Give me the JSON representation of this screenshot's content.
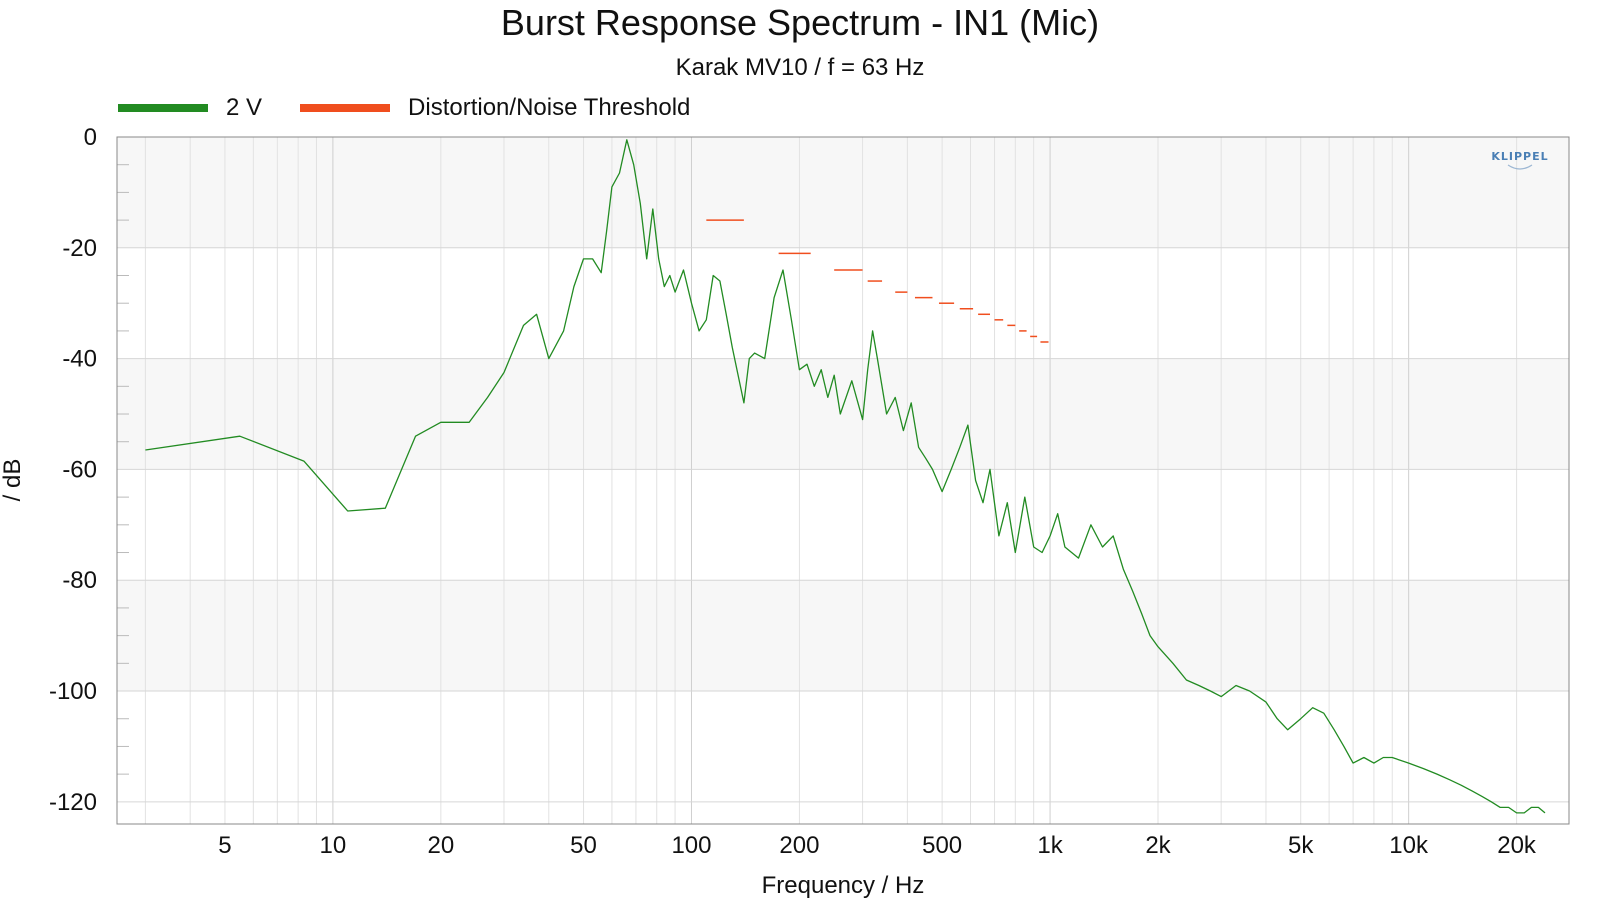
{
  "chart_data": {
    "type": "line",
    "title": "Burst Response Spectrum - IN1 (Mic)",
    "subtitle": "Karak MV10 / f = 63 Hz",
    "xlabel": "Frequency / Hz",
    "ylabel": "/ dB",
    "x_scale": "log",
    "xlim": [
      2.5,
      28000
    ],
    "ylim": [
      -124,
      0
    ],
    "x_ticks": [
      5,
      10,
      20,
      50,
      100,
      200,
      500,
      1000,
      2000,
      5000,
      10000,
      20000
    ],
    "x_tick_labels": [
      "5",
      "10",
      "20",
      "50",
      "100",
      "200",
      "500",
      "1k",
      "2k",
      "5k",
      "10k",
      "20k"
    ],
    "y_ticks": [
      0,
      -20,
      -40,
      -60,
      -80,
      -100,
      -120
    ],
    "y_tick_labels": [
      "0",
      "-20",
      "-40",
      "-60",
      "-80",
      "-100",
      "-120"
    ],
    "grid": true,
    "legend_position": "top-left",
    "watermark": "KLIPPEL",
    "series": [
      {
        "name": "2 V",
        "color": "#228b22",
        "x": [
          3.0,
          5.5,
          8.3,
          11,
          14,
          17,
          20,
          24,
          27,
          30,
          34,
          37,
          40,
          44,
          47,
          50,
          53,
          56,
          58,
          60,
          63,
          66,
          69,
          72,
          75,
          78,
          81,
          84,
          87,
          90,
          95,
          100,
          105,
          110,
          115,
          120,
          125,
          130,
          140,
          145,
          150,
          160,
          170,
          180,
          190,
          200,
          210,
          220,
          230,
          240,
          250,
          260,
          280,
          300,
          310,
          320,
          330,
          350,
          370,
          390,
          410,
          430,
          450,
          470,
          500,
          530,
          560,
          590,
          620,
          650,
          680,
          720,
          760,
          800,
          850,
          900,
          950,
          1000,
          1050,
          1100,
          1200,
          1300,
          1400,
          1500,
          1600,
          1700,
          1800,
          1900,
          2000,
          2200,
          2400,
          2600,
          2800,
          3000,
          3300,
          3600,
          4000,
          4300,
          4600,
          5000,
          5400,
          5800,
          6200,
          6600,
          7000,
          7500,
          8000,
          8500,
          9000,
          10000,
          11000,
          12000,
          13000,
          14000,
          15000,
          16000,
          17000,
          18000,
          19000,
          20000,
          21000,
          22000,
          23000,
          24000
        ],
        "values": [
          -56.5,
          -54,
          -58.5,
          -67.5,
          -67,
          -54,
          -51.5,
          -51.5,
          -47,
          -42.5,
          -34,
          -32,
          -40,
          -35,
          -27,
          -22,
          -22,
          -24.5,
          -17,
          -9,
          -6.5,
          -0.5,
          -5,
          -12,
          -22,
          -13,
          -22,
          -27,
          -25,
          -28,
          -24,
          -30,
          -35,
          -33,
          -25,
          -26,
          -32,
          -38,
          -48,
          -40,
          -39,
          -40,
          -29,
          -24,
          -33,
          -42,
          -41,
          -45,
          -42,
          -47,
          -43,
          -50,
          -44,
          -51,
          -42,
          -35,
          -40,
          -50,
          -47,
          -53,
          -48,
          -56,
          -58,
          -60,
          -64,
          -60,
          -56,
          -52,
          -62,
          -66,
          -60,
          -72,
          -66,
          -75,
          -65,
          -74,
          -75,
          -72,
          -68,
          -74,
          -76,
          -70,
          -74,
          -72,
          -78,
          -82,
          -86,
          -90,
          -92,
          -95,
          -98,
          -99,
          -100,
          -101,
          -99,
          -100,
          -102,
          -105,
          -107,
          -105,
          -103,
          -104,
          -107,
          -110,
          -113,
          -112,
          -113,
          -112,
          -112,
          -113,
          -114,
          -115,
          -116,
          -117,
          -118,
          -119,
          -120,
          -121,
          -121,
          -122,
          -122,
          -121,
          -121,
          -122
        ]
      },
      {
        "name": "Distortion/Noise Threshold",
        "color": "#f04e1e",
        "segments": [
          {
            "x": [
              110,
              140
            ],
            "y": -15
          },
          {
            "x": [
              175,
              215
            ],
            "y": -21
          },
          {
            "x": [
              250,
              300
            ],
            "y": -24
          },
          {
            "x": [
              310,
              340
            ],
            "y": -26
          },
          {
            "x": [
              370,
              400
            ],
            "y": -28
          },
          {
            "x": [
              420,
              470
            ],
            "y": -29
          },
          {
            "x": [
              490,
              540
            ],
            "y": -30
          },
          {
            "x": [
              560,
              610
            ],
            "y": -31
          },
          {
            "x": [
              630,
              680
            ],
            "y": -32
          },
          {
            "x": [
              700,
              740
            ],
            "y": -33
          },
          {
            "x": [
              760,
              800
            ],
            "y": -34
          },
          {
            "x": [
              820,
              860
            ],
            "y": -35
          },
          {
            "x": [
              880,
              920
            ],
            "y": -36
          },
          {
            "x": [
              940,
              990
            ],
            "y": -37
          }
        ]
      }
    ]
  }
}
